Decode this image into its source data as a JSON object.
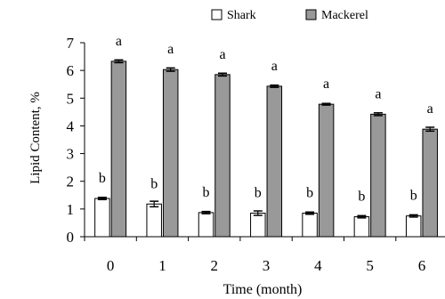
{
  "chart_data": {
    "type": "bar",
    "title": "",
    "xlabel": "Time (month)",
    "ylabel": "Lipid Content, %",
    "ylim": [
      0,
      7
    ],
    "yticks": [
      "0",
      "1",
      "2",
      "3",
      "4",
      "5",
      "6",
      "7"
    ],
    "categories": [
      "0",
      "1",
      "2",
      "3",
      "4",
      "5",
      "6"
    ],
    "legend": {
      "placement": "top-right"
    },
    "grid": false,
    "series": [
      {
        "name": "Shark",
        "color": "#ffffff",
        "values": [
          1.38,
          1.18,
          0.87,
          0.85,
          0.85,
          0.72,
          0.75
        ],
        "errors": [
          0.04,
          0.1,
          0.04,
          0.08,
          0.04,
          0.04,
          0.04
        ],
        "labels": [
          "b",
          "b",
          "b",
          "b",
          "b",
          "b",
          "b"
        ]
      },
      {
        "name": "Mackerel",
        "color": "#999999",
        "values": [
          6.33,
          6.03,
          5.85,
          5.43,
          4.78,
          4.42,
          3.88
        ],
        "errors": [
          0.05,
          0.06,
          0.05,
          0.04,
          0.03,
          0.05,
          0.07
        ],
        "labels": [
          "a",
          "a",
          "a",
          "a",
          "a",
          "a",
          "a"
        ]
      }
    ]
  }
}
